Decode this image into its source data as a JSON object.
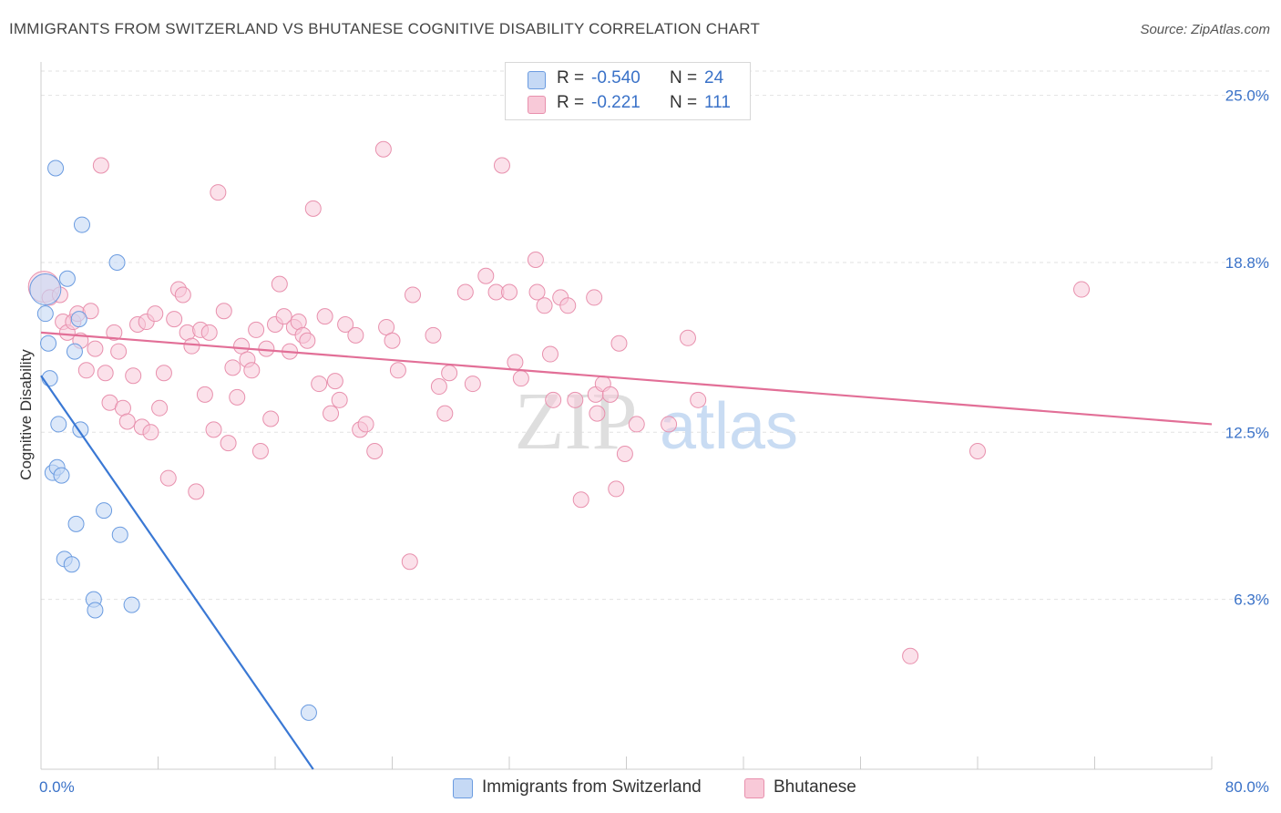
{
  "header": {
    "title": "IMMIGRANTS FROM SWITZERLAND VS BHUTANESE COGNITIVE DISABILITY CORRELATION CHART",
    "source": "Source: ZipAtlas.com"
  },
  "legend": {
    "rows": [
      {
        "r_label": "R =",
        "r_value": "-0.540",
        "n_label": "N =",
        "n_value": "24"
      },
      {
        "r_label": "R =",
        "r_value": "-0.221",
        "n_label": "N =",
        "n_value": "111"
      }
    ]
  },
  "watermark": {
    "zip": "ZIP",
    "atlas": "atlas"
  },
  "colors": {
    "blue_fill": "#c5d9f5",
    "blue_stroke": "#6a9be0",
    "blue_line": "#3a78d4",
    "pink_fill": "#f8c9d8",
    "pink_stroke": "#e890ad",
    "pink_line": "#e26f97",
    "tick_text": "#3a72c8",
    "grid": "#e2e2e2"
  },
  "chart_data": {
    "type": "scatter",
    "title": "IMMIGRANTS FROM SWITZERLAND VS BHUTANESE COGNITIVE DISABILITY CORRELATION CHART",
    "xlabel": "",
    "ylabel": "Cognitive Disability",
    "xlim": [
      0,
      80
    ],
    "ylim": [
      0,
      25.9
    ],
    "x_tick_labels": [
      "0.0%",
      "80.0%"
    ],
    "y_ticks": [
      6.3,
      12.5,
      18.8,
      25.0
    ],
    "y_tick_labels": [
      "6.3%",
      "12.5%",
      "18.8%",
      "25.0%"
    ],
    "grid": "horizontal dashed",
    "legend_position": "top-center and bottom",
    "series": [
      {
        "name": "Immigrants from Switzerland",
        "color": "blue",
        "trend": {
          "x": [
            0.0,
            18.6
          ],
          "y": [
            14.6,
            0.0
          ]
        },
        "points": [
          {
            "x": 0.3,
            "y": 17.8,
            "big": true
          },
          {
            "x": 0.3,
            "y": 16.9
          },
          {
            "x": 0.5,
            "y": 15.8
          },
          {
            "x": 0.6,
            "y": 14.5
          },
          {
            "x": 0.8,
            "y": 11.0
          },
          {
            "x": 1.0,
            "y": 22.3
          },
          {
            "x": 1.1,
            "y": 11.2
          },
          {
            "x": 1.2,
            "y": 12.8
          },
          {
            "x": 1.4,
            "y": 10.9
          },
          {
            "x": 1.6,
            "y": 7.8
          },
          {
            "x": 1.8,
            "y": 18.2
          },
          {
            "x": 2.1,
            "y": 7.6
          },
          {
            "x": 2.3,
            "y": 15.5
          },
          {
            "x": 2.4,
            "y": 9.1
          },
          {
            "x": 2.6,
            "y": 16.7
          },
          {
            "x": 2.7,
            "y": 12.6
          },
          {
            "x": 2.8,
            "y": 20.2
          },
          {
            "x": 3.6,
            "y": 6.3
          },
          {
            "x": 3.7,
            "y": 5.9
          },
          {
            "x": 4.3,
            "y": 9.6
          },
          {
            "x": 5.2,
            "y": 18.8
          },
          {
            "x": 5.4,
            "y": 8.7
          },
          {
            "x": 6.2,
            "y": 6.1
          },
          {
            "x": 18.3,
            "y": 2.1
          }
        ]
      },
      {
        "name": "Bhutanese",
        "color": "pink",
        "trend": {
          "x": [
            0.0,
            80.0
          ],
          "y": [
            16.2,
            12.8
          ]
        },
        "points": [
          {
            "x": 0.2,
            "y": 17.9,
            "big": true
          },
          {
            "x": 0.6,
            "y": 17.5
          },
          {
            "x": 1.3,
            "y": 17.6
          },
          {
            "x": 1.5,
            "y": 16.6
          },
          {
            "x": 1.8,
            "y": 16.2
          },
          {
            "x": 2.2,
            "y": 16.6
          },
          {
            "x": 2.5,
            "y": 16.9
          },
          {
            "x": 2.7,
            "y": 15.9
          },
          {
            "x": 3.1,
            "y": 14.8
          },
          {
            "x": 3.4,
            "y": 17.0
          },
          {
            "x": 3.7,
            "y": 15.6
          },
          {
            "x": 4.1,
            "y": 22.4
          },
          {
            "x": 4.4,
            "y": 14.7
          },
          {
            "x": 4.7,
            "y": 13.6
          },
          {
            "x": 5.0,
            "y": 16.2
          },
          {
            "x": 5.3,
            "y": 15.5
          },
          {
            "x": 5.6,
            "y": 13.4
          },
          {
            "x": 5.9,
            "y": 12.9
          },
          {
            "x": 6.3,
            "y": 14.6
          },
          {
            "x": 6.6,
            "y": 16.5
          },
          {
            "x": 6.9,
            "y": 12.7
          },
          {
            "x": 7.2,
            "y": 16.6
          },
          {
            "x": 7.5,
            "y": 12.5
          },
          {
            "x": 7.8,
            "y": 16.9
          },
          {
            "x": 8.1,
            "y": 13.4
          },
          {
            "x": 8.4,
            "y": 14.7
          },
          {
            "x": 8.7,
            "y": 10.8
          },
          {
            "x": 9.1,
            "y": 16.7
          },
          {
            "x": 9.4,
            "y": 17.8
          },
          {
            "x": 9.7,
            "y": 17.6
          },
          {
            "x": 10.0,
            "y": 16.2
          },
          {
            "x": 10.3,
            "y": 15.7
          },
          {
            "x": 10.6,
            "y": 10.3
          },
          {
            "x": 10.9,
            "y": 16.3
          },
          {
            "x": 11.2,
            "y": 13.9
          },
          {
            "x": 11.5,
            "y": 16.2
          },
          {
            "x": 11.8,
            "y": 12.6
          },
          {
            "x": 12.1,
            "y": 21.4
          },
          {
            "x": 12.5,
            "y": 17.0
          },
          {
            "x": 12.8,
            "y": 12.1
          },
          {
            "x": 13.1,
            "y": 14.9
          },
          {
            "x": 13.4,
            "y": 13.8
          },
          {
            "x": 13.7,
            "y": 15.7
          },
          {
            "x": 14.1,
            "y": 15.2
          },
          {
            "x": 14.4,
            "y": 14.8
          },
          {
            "x": 14.7,
            "y": 16.3
          },
          {
            "x": 15.0,
            "y": 11.8
          },
          {
            "x": 15.4,
            "y": 15.6
          },
          {
            "x": 15.7,
            "y": 13.0
          },
          {
            "x": 16.0,
            "y": 16.5
          },
          {
            "x": 16.3,
            "y": 18.0
          },
          {
            "x": 16.6,
            "y": 16.8
          },
          {
            "x": 17.0,
            "y": 15.5
          },
          {
            "x": 17.3,
            "y": 16.4
          },
          {
            "x": 17.6,
            "y": 16.6
          },
          {
            "x": 17.9,
            "y": 16.1
          },
          {
            "x": 18.2,
            "y": 15.9
          },
          {
            "x": 18.6,
            "y": 20.8
          },
          {
            "x": 19.0,
            "y": 14.3
          },
          {
            "x": 19.4,
            "y": 16.8
          },
          {
            "x": 19.8,
            "y": 13.2
          },
          {
            "x": 20.1,
            "y": 14.4
          },
          {
            "x": 20.4,
            "y": 13.7
          },
          {
            "x": 20.8,
            "y": 16.5
          },
          {
            "x": 21.5,
            "y": 16.1
          },
          {
            "x": 21.8,
            "y": 12.6
          },
          {
            "x": 22.2,
            "y": 12.8
          },
          {
            "x": 22.8,
            "y": 11.8
          },
          {
            "x": 23.4,
            "y": 23.0
          },
          {
            "x": 23.6,
            "y": 16.4
          },
          {
            "x": 24.0,
            "y": 15.9
          },
          {
            "x": 24.4,
            "y": 14.8
          },
          {
            "x": 25.2,
            "y": 7.7
          },
          {
            "x": 25.4,
            "y": 17.6
          },
          {
            "x": 26.8,
            "y": 16.1
          },
          {
            "x": 27.2,
            "y": 14.2
          },
          {
            "x": 27.6,
            "y": 13.2
          },
          {
            "x": 27.9,
            "y": 14.7
          },
          {
            "x": 29.0,
            "y": 17.7
          },
          {
            "x": 29.5,
            "y": 14.3
          },
          {
            "x": 30.4,
            "y": 18.3
          },
          {
            "x": 31.1,
            "y": 17.7
          },
          {
            "x": 31.5,
            "y": 22.4
          },
          {
            "x": 32.0,
            "y": 17.7
          },
          {
            "x": 32.4,
            "y": 15.1
          },
          {
            "x": 32.8,
            "y": 14.5
          },
          {
            "x": 33.8,
            "y": 18.9
          },
          {
            "x": 33.9,
            "y": 17.7
          },
          {
            "x": 34.4,
            "y": 17.2
          },
          {
            "x": 34.8,
            "y": 15.4
          },
          {
            "x": 35.0,
            "y": 13.7
          },
          {
            "x": 35.5,
            "y": 17.5
          },
          {
            "x": 36.0,
            "y": 17.2
          },
          {
            "x": 36.5,
            "y": 13.7
          },
          {
            "x": 36.9,
            "y": 10.0
          },
          {
            "x": 37.8,
            "y": 17.5
          },
          {
            "x": 37.9,
            "y": 13.9
          },
          {
            "x": 38.0,
            "y": 13.2
          },
          {
            "x": 38.4,
            "y": 14.3
          },
          {
            "x": 38.9,
            "y": 13.9
          },
          {
            "x": 39.3,
            "y": 10.4
          },
          {
            "x": 39.5,
            "y": 15.8
          },
          {
            "x": 39.9,
            "y": 11.7
          },
          {
            "x": 40.7,
            "y": 12.8
          },
          {
            "x": 42.9,
            "y": 12.8
          },
          {
            "x": 44.2,
            "y": 16.0
          },
          {
            "x": 44.9,
            "y": 13.7
          },
          {
            "x": 59.4,
            "y": 4.2
          },
          {
            "x": 64.0,
            "y": 11.8
          },
          {
            "x": 71.1,
            "y": 17.8
          }
        ]
      }
    ]
  },
  "bottom_legend": [
    {
      "label": "Immigrants from Switzerland"
    },
    {
      "label": "Bhutanese"
    }
  ]
}
